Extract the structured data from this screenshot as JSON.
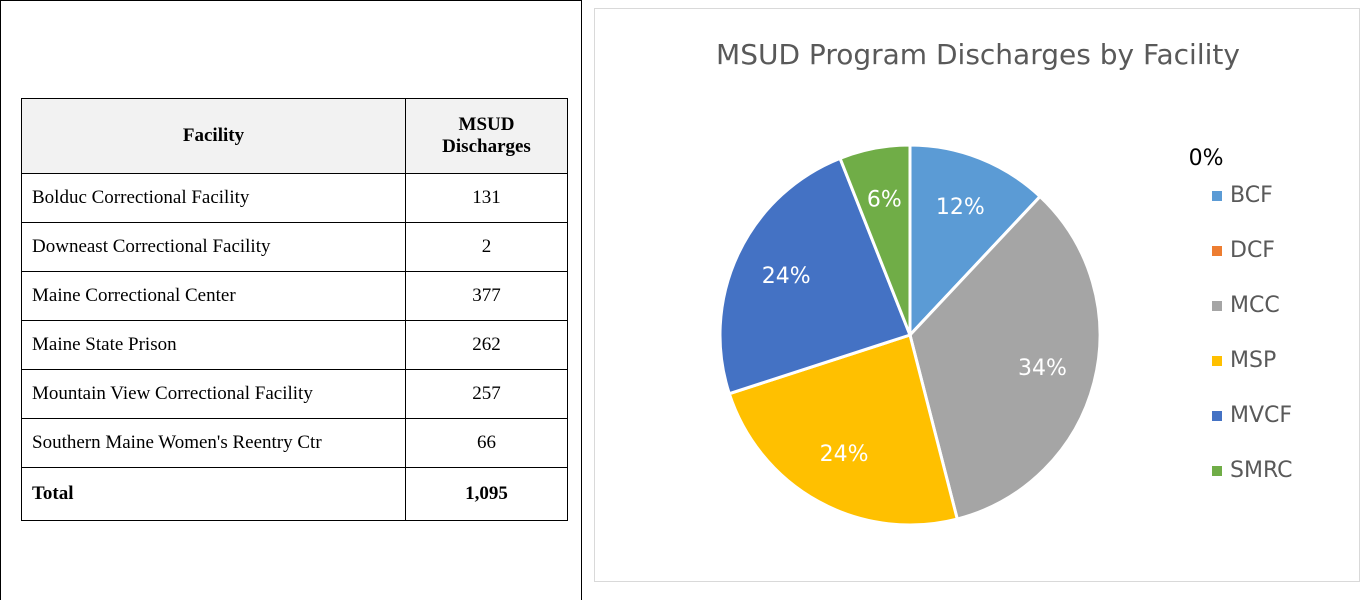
{
  "table": {
    "header": [
      "Facility",
      "MSUD Discharges"
    ],
    "rows": [
      [
        "Bolduc Correctional Facility",
        "131"
      ],
      [
        "Downeast Correctional Facility",
        "2"
      ],
      [
        "Maine Correctional Center",
        "377"
      ],
      [
        "Maine State Prison",
        "262"
      ],
      [
        "Mountain View Correctional Facility",
        "257"
      ],
      [
        "Southern Maine Women's Reentry Ctr",
        "66"
      ]
    ],
    "total": [
      "Total",
      "1,095"
    ]
  },
  "chart_data": {
    "type": "pie",
    "title": "MSUD Program Discharges by Facility",
    "categories": [
      "BCF",
      "DCF",
      "MCC",
      "MSP",
      "MVCF",
      "SMRC"
    ],
    "values": [
      12,
      0,
      34,
      24,
      24,
      6
    ],
    "value_labels": [
      "12%",
      "0%",
      "34%",
      "24%",
      "24%",
      "6%"
    ],
    "colors": [
      "#5b9bd5",
      "#ed7d31",
      "#a5a5a5",
      "#ffc000",
      "#4472c4",
      "#70ad47"
    ],
    "legend": "right"
  }
}
